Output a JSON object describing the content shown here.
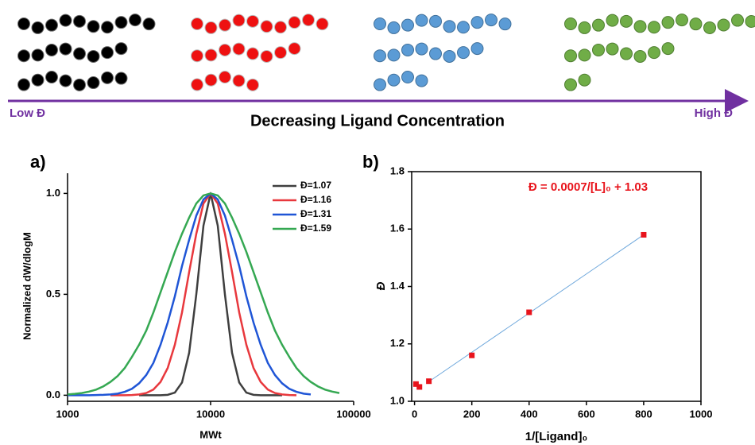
{
  "schematic": {
    "low_label": "Low Đ",
    "high_label": "High Đ",
    "caption": "Decreasing Ligand Concentration"
  },
  "panel_labels": [
    "a)",
    "b)"
  ],
  "chart_data": [
    {
      "type": "line",
      "x_label": "MWt",
      "y_label": "Normalized dW/dlogM",
      "xscale": "log",
      "legend": "upper right",
      "xlim": [
        1000,
        100000
      ],
      "xticks": [
        1000,
        10000,
        100000
      ],
      "ylim": [
        -0.03,
        1.1
      ],
      "yticks": [
        {
          "value": 0,
          "label": "0.0"
        },
        0.5,
        {
          "value": 1,
          "label": "1.0"
        }
      ],
      "x": [
        1000,
        1122,
        1259,
        1413,
        1585,
        1778,
        1995,
        2239,
        2512,
        2818,
        3162,
        3548,
        3981,
        4467,
        5012,
        5623,
        6310,
        7079,
        7943,
        8913,
        10000,
        11220,
        12589,
        14125,
        15849,
        17783,
        19953,
        22387,
        25119,
        28184,
        31623,
        35481,
        39811,
        44668,
        50119,
        56234,
        63096,
        70795,
        79433
      ],
      "series": [
        {
          "name": "Đ=1.07",
          "color": "#3f3f3f",
          "values": [
            null,
            null,
            null,
            null,
            null,
            null,
            null,
            null,
            null,
            null,
            0,
            0,
            0,
            0,
            0.002,
            0.013,
            0.063,
            0.21,
            0.5,
            0.84,
            1,
            0.84,
            0.5,
            0.21,
            0.063,
            0.013,
            0.002,
            0,
            0,
            0,
            0,
            null,
            null,
            null,
            null,
            null,
            null,
            null,
            null
          ]
        },
        {
          "name": "Đ=1.16",
          "color": "#e8383d",
          "values": [
            null,
            null,
            null,
            null,
            null,
            null,
            0,
            0,
            0,
            0.001,
            0.004,
            0.011,
            0.028,
            0.066,
            0.135,
            0.25,
            0.41,
            0.61,
            0.8,
            0.95,
            1,
            0.95,
            0.8,
            0.61,
            0.41,
            0.25,
            0.135,
            0.066,
            0.028,
            0.011,
            0.004,
            0.001,
            0,
            null,
            null,
            null,
            null,
            null,
            null
          ]
        },
        {
          "name": "Đ=1.31",
          "color": "#1f55d6",
          "values": [
            0,
            0,
            0,
            0,
            0.001,
            0.002,
            0.004,
            0.008,
            0.017,
            0.032,
            0.059,
            0.1,
            0.16,
            0.25,
            0.36,
            0.49,
            0.64,
            0.77,
            0.89,
            0.97,
            1,
            0.97,
            0.89,
            0.77,
            0.64,
            0.49,
            0.36,
            0.25,
            0.16,
            0.1,
            0.059,
            0.032,
            0.017,
            0.008,
            0.004,
            null,
            null,
            null,
            null
          ]
        },
        {
          "name": "Đ=1.59",
          "color": "#35a852",
          "values": [
            0.004,
            0.007,
            0.011,
            0.018,
            0.028,
            0.044,
            0.066,
            0.095,
            0.135,
            0.19,
            0.25,
            0.32,
            0.41,
            0.51,
            0.61,
            0.71,
            0.8,
            0.88,
            0.95,
            0.99,
            1,
            0.99,
            0.95,
            0.88,
            0.8,
            0.71,
            0.61,
            0.51,
            0.41,
            0.32,
            0.25,
            0.19,
            0.135,
            0.095,
            0.066,
            0.044,
            0.028,
            0.018,
            0.011
          ]
        }
      ]
    },
    {
      "type": "scatter",
      "x_label": "1/[Ligand]₀",
      "y_label": "Đ",
      "annotation": "Đ = 0.0007/[L]₀ + 1.03",
      "xlim": [
        -10,
        1000
      ],
      "xticks": [
        0,
        200,
        400,
        600,
        800,
        1000
      ],
      "ylim": [
        1.0,
        1.8
      ],
      "yticks": [
        {
          "value": 1.0,
          "label": "1.0"
        },
        1.2,
        1.4,
        1.6,
        1.8
      ],
      "points": {
        "color": "#e8141c",
        "x": [
          5,
          17,
          50,
          200,
          400,
          800
        ],
        "values": [
          1.06,
          1.05,
          1.07,
          1.16,
          1.31,
          1.58
        ]
      },
      "fit_line": {
        "color": "#6fa8dc",
        "x": [
          45,
          800
        ],
        "values": [
          1.065,
          1.58
        ]
      }
    }
  ]
}
